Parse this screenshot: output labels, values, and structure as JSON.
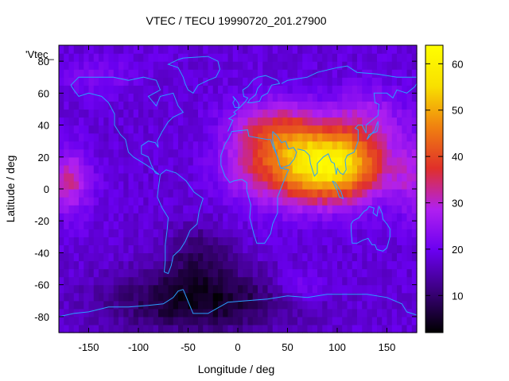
{
  "chart_data": {
    "type": "heatmap",
    "title": "VTEC / TECU 19990720_201.27900",
    "xlabel": "Longitude / deg",
    "ylabel": "Latitude / deg",
    "series_label": "'Vtec_",
    "xlim": [
      -180,
      180
    ],
    "ylim": [
      -90,
      90
    ],
    "xticks": [
      -150,
      -100,
      -50,
      0,
      50,
      100,
      150
    ],
    "yticks": [
      -80,
      -60,
      -40,
      -20,
      0,
      20,
      40,
      60,
      80
    ],
    "colorbar": {
      "range": [
        2,
        64
      ],
      "ticks": [
        10,
        20,
        30,
        40,
        50,
        60
      ],
      "colors": [
        "#000000",
        "#3a007a",
        "#6a00f0",
        "#b020f0",
        "#e0302a",
        "#f08010",
        "#f8e000",
        "#ffff00"
      ]
    },
    "grid_step_deg": 5,
    "peak": {
      "lon": 80,
      "lat": 18,
      "value": 64
    },
    "features": [
      {
        "name": "dayside-equatorial-anomaly",
        "lon": 80,
        "lat": 10,
        "value": 60
      },
      {
        "name": "pacific-crest",
        "lon": -165,
        "lat": 5,
        "value": 32
      },
      {
        "name": "southern-low",
        "lon": -50,
        "lat": -75,
        "value": 3
      }
    ],
    "background_value": 18
  }
}
